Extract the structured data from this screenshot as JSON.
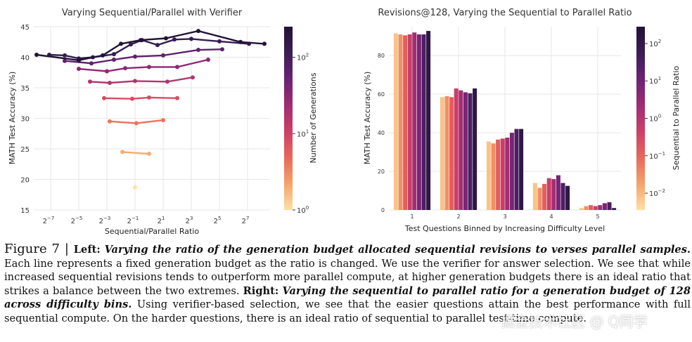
{
  "colors": {
    "colormap": [
      "#fde0a5",
      "#f4a56b",
      "#e8665b",
      "#cc3f68",
      "#a02c74",
      "#6c2375",
      "#3a1d55",
      "#221336"
    ],
    "grid": "#e6e6e6",
    "axis": "#555555"
  },
  "chart_data": [
    {
      "type": "line",
      "title": "Varying Sequential/Parallel with Verifier",
      "xlabel": "Sequential/Parallel Ratio",
      "ylabel": "MATH Test Accuracy (%)",
      "xscale": "log2",
      "xlim_log2": [
        -8.2,
        8.6
      ],
      "ylim": [
        15,
        45
      ],
      "yticks": [
        15,
        20,
        25,
        30,
        35,
        40,
        45
      ],
      "xticks": [
        {
          "exp": -7,
          "base": "2",
          "power": "−7"
        },
        {
          "exp": -5,
          "base": "2",
          "power": "−5"
        },
        {
          "exp": -3,
          "base": "2",
          "power": "−3"
        },
        {
          "exp": -1,
          "base": "2",
          "power": "−1"
        },
        {
          "exp": 1,
          "base": "2",
          "power": "1"
        },
        {
          "exp": 3,
          "base": "2",
          "power": "3"
        },
        {
          "exp": 5,
          "base": "2",
          "power": "5"
        },
        {
          "exp": 7,
          "base": "2",
          "power": "7"
        }
      ],
      "colorbar": {
        "label": "Number of Generations",
        "scale": "log",
        "range_exp": [
          0,
          2.4
        ],
        "ticks": [
          {
            "exp": 0,
            "base": "10",
            "power": "0"
          },
          {
            "exp": 1,
            "base": "10",
            "power": "1"
          },
          {
            "exp": 2,
            "base": "10",
            "power": "2"
          }
        ]
      },
      "series": [
        {
          "generations": 1,
          "points": [
            [
              -1,
              18.7
            ]
          ]
        },
        {
          "generations": 2,
          "points": [
            [
              -1.9,
              24.5
            ],
            [
              0,
              24.2
            ]
          ]
        },
        {
          "generations": 4,
          "points": [
            [
              -2.8,
              29.5
            ],
            [
              -0.9,
              29.2
            ],
            [
              1,
              29.7
            ]
          ]
        },
        {
          "generations": 8,
          "points": [
            [
              -3.2,
              33.3
            ],
            [
              -1.2,
              33.2
            ],
            [
              0,
              33.4
            ],
            [
              2,
              33.3
            ]
          ]
        },
        {
          "generations": 16,
          "points": [
            [
              -4.2,
              36.0
            ],
            [
              -2.8,
              35.8
            ],
            [
              -1.0,
              36.1
            ],
            [
              1.3,
              36.0
            ],
            [
              3.1,
              36.7
            ]
          ]
        },
        {
          "generations": 32,
          "points": [
            [
              -5.0,
              38.1
            ],
            [
              -3.0,
              37.7
            ],
            [
              -1.7,
              38.2
            ],
            [
              0,
              38.4
            ],
            [
              2.0,
              38.4
            ],
            [
              4.2,
              39.6
            ]
          ]
        },
        {
          "generations": 64,
          "points": [
            [
              -6.0,
              39.4
            ],
            [
              -4.1,
              39.0
            ],
            [
              -2.5,
              39.6
            ],
            [
              -1.0,
              40.1
            ],
            [
              1.0,
              40.3
            ],
            [
              3.5,
              41.2
            ],
            [
              5.2,
              41.3
            ]
          ]
        },
        {
          "generations": 128,
          "points": [
            [
              -7.1,
              40.4
            ],
            [
              -6.0,
              40.3
            ],
            [
              -5.0,
              39.8
            ],
            [
              -4.0,
              40.0
            ],
            [
              -2.5,
              40.5
            ],
            [
              -1.3,
              42.1
            ],
            [
              -0.5,
              42.8
            ],
            [
              0.6,
              42.0
            ],
            [
              1.8,
              42.9
            ],
            [
              3.0,
              43.0
            ],
            [
              5.0,
              42.6
            ],
            [
              7.1,
              42.2
            ]
          ]
        },
        {
          "generations": 256,
          "points": [
            [
              -8.0,
              40.4
            ],
            [
              -5.0,
              39.5
            ],
            [
              -3.3,
              40.3
            ],
            [
              -2.0,
              42.2
            ],
            [
              -0.6,
              42.8
            ],
            [
              1.2,
              43.1
            ],
            [
              3.5,
              44.3
            ],
            [
              6.5,
              42.5
            ],
            [
              8.2,
              42.2
            ]
          ]
        }
      ]
    },
    {
      "type": "bar",
      "title": "Revisions@128, Varying the Sequential to Parallel Ratio",
      "xlabel": "Test Questions Binned by Increasing Difficulty Level",
      "ylabel": "MATH Test Accuracy (%)",
      "ylim": [
        0,
        95
      ],
      "yticks": [
        0,
        20,
        40,
        60,
        80
      ],
      "categories": [
        "1",
        "2",
        "3",
        "4",
        "5"
      ],
      "colorbar": {
        "label": "Sequential to Parallel Ratio",
        "scale": "log",
        "range_exp": [
          -2.45,
          2.45
        ],
        "ticks": [
          {
            "exp": -2,
            "base": "10",
            "power": "−2"
          },
          {
            "exp": -1,
            "base": "10",
            "power": "−1"
          },
          {
            "exp": 0,
            "base": "10",
            "power": "0"
          },
          {
            "exp": 1,
            "base": "10",
            "power": "1"
          },
          {
            "exp": 2,
            "base": "10",
            "power": "2"
          }
        ]
      },
      "series_ratios_exp": [
        -2.1,
        -1.5,
        -0.9,
        -0.3,
        0.3,
        0.9,
        1.5,
        2.1
      ],
      "values": [
        [
          91.5,
          91.0,
          90.5,
          91.0,
          92.0,
          91.0,
          91.0,
          92.8
        ],
        [
          58.5,
          59.0,
          58.5,
          63.0,
          62.0,
          61.0,
          60.5,
          63.0
        ],
        [
          35.5,
          34.5,
          36.5,
          37.0,
          37.5,
          40.0,
          42.0,
          42.0
        ],
        [
          14.0,
          11.5,
          13.5,
          16.5,
          16.0,
          18.0,
          14.0,
          12.5
        ],
        [
          1.0,
          2.0,
          2.5,
          2.0,
          2.5,
          3.5,
          4.0,
          1.0
        ]
      ]
    }
  ],
  "caption": {
    "figure_label": "Figure 7",
    "separator": " | ",
    "left_head": "Left:",
    "left_title": "Varying the ratio of the generation budget allocated sequential revisions to verses parallel samples.",
    "left_body": " Each line represents a fixed generation budget as the ratio is changed. We use the verifier for answer selection. We see that while increased sequential revisions tends to outperform more parallel compute, at higher generation budgets there is an ideal ratio that strikes a balance between the two extremes. ",
    "right_head": "Right:",
    "right_title": "Varying the sequential to parallel ratio for a generation budget of 128 across difficulty bins.",
    "right_body": " Using verifier-based selection, we see that the easier questions attain the best performance with full sequential compute. On the harder questions, there is an ideal ratio of sequential to parallel test-time compute."
  },
  "watermark": "掘金技术社区 @ Q同学"
}
